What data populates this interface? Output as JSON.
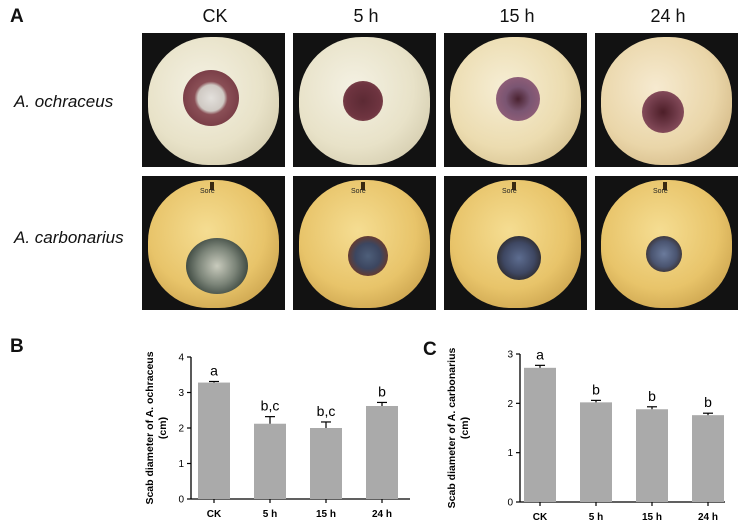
{
  "panel_letters": {
    "a": "A",
    "b": "B",
    "c": "C"
  },
  "columns": [
    "CK",
    "5 h",
    "15 h",
    "24 h"
  ],
  "rows": [
    "A. ochraceus",
    "A. carbonarius"
  ],
  "photo_sticker": "Sore",
  "chart_data": [
    {
      "type": "bar",
      "panel": "B",
      "categories": [
        "CK",
        "5 h",
        "15 h",
        "24 h"
      ],
      "values": [
        3.28,
        2.12,
        2.0,
        2.62
      ],
      "errors": [
        0.03,
        0.2,
        0.17,
        0.1
      ],
      "significance": [
        "a",
        "b,c",
        "b,c",
        "b"
      ],
      "ylabel": "Scab diameter of A. ochraceus (cm)",
      "ylabel_lines": [
        "Scab diameter of A. ochraceus",
        "(cm)"
      ],
      "ylim": [
        0,
        4
      ],
      "yticks": [
        0,
        1,
        2,
        3,
        4
      ],
      "bar_color": "#aaaaaa",
      "grid": false
    },
    {
      "type": "bar",
      "panel": "C",
      "categories": [
        "CK",
        "5 h",
        "15 h",
        "24 h"
      ],
      "values": [
        2.72,
        2.02,
        1.88,
        1.76
      ],
      "errors": [
        0.05,
        0.04,
        0.05,
        0.04
      ],
      "significance": [
        "a",
        "b",
        "b",
        "b"
      ],
      "ylabel": "Scab diameter of A. carbonarius (cm)",
      "ylabel_lines": [
        "Scab diameter of A. carbonarius",
        "(cm)"
      ],
      "ylim": [
        0,
        3
      ],
      "yticks": [
        0,
        1,
        2,
        3
      ],
      "bar_color": "#aaaaaa",
      "grid": false
    }
  ]
}
